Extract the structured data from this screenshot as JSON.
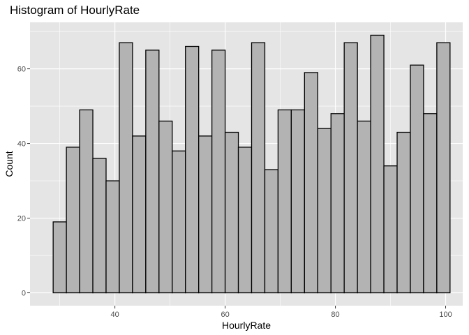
{
  "chart_data": {
    "type": "bar",
    "title": "Histogram of HourlyRate",
    "xlabel": "HourlyRate",
    "ylabel": "Count",
    "bin_width": 2.4,
    "bins": [
      {
        "x": 30.0,
        "count": 19
      },
      {
        "x": 32.4,
        "count": 39
      },
      {
        "x": 34.8,
        "count": 49
      },
      {
        "x": 37.2,
        "count": 36
      },
      {
        "x": 39.6,
        "count": 30
      },
      {
        "x": 42.0,
        "count": 67
      },
      {
        "x": 44.4,
        "count": 42
      },
      {
        "x": 46.8,
        "count": 65
      },
      {
        "x": 49.2,
        "count": 46
      },
      {
        "x": 51.6,
        "count": 38
      },
      {
        "x": 54.0,
        "count": 66
      },
      {
        "x": 56.4,
        "count": 42
      },
      {
        "x": 58.8,
        "count": 65
      },
      {
        "x": 61.2,
        "count": 43
      },
      {
        "x": 63.6,
        "count": 39
      },
      {
        "x": 66.0,
        "count": 67
      },
      {
        "x": 68.4,
        "count": 33
      },
      {
        "x": 70.8,
        "count": 49
      },
      {
        "x": 73.2,
        "count": 49
      },
      {
        "x": 75.6,
        "count": 59
      },
      {
        "x": 78.0,
        "count": 44
      },
      {
        "x": 80.4,
        "count": 48
      },
      {
        "x": 82.8,
        "count": 67
      },
      {
        "x": 85.2,
        "count": 46
      },
      {
        "x": 87.6,
        "count": 69
      },
      {
        "x": 90.0,
        "count": 34
      },
      {
        "x": 92.4,
        "count": 43
      },
      {
        "x": 94.8,
        "count": 61
      },
      {
        "x": 97.2,
        "count": 48
      },
      {
        "x": 99.6,
        "count": 67
      }
    ],
    "xlim": [
      24.6,
      103.1
    ],
    "ylim": [
      -3.45,
      72.45
    ],
    "x_ticks": [
      40,
      60,
      80,
      100
    ],
    "y_ticks": [
      0,
      20,
      40,
      60
    ],
    "grid": true,
    "colors": {
      "panel": "#e5e5e5",
      "grid_major": "#ffffff",
      "bar_fill": "#b3b3b3",
      "bar_stroke": "#000000",
      "tick": "#333333",
      "tick_label": "#4d4d4d"
    }
  }
}
